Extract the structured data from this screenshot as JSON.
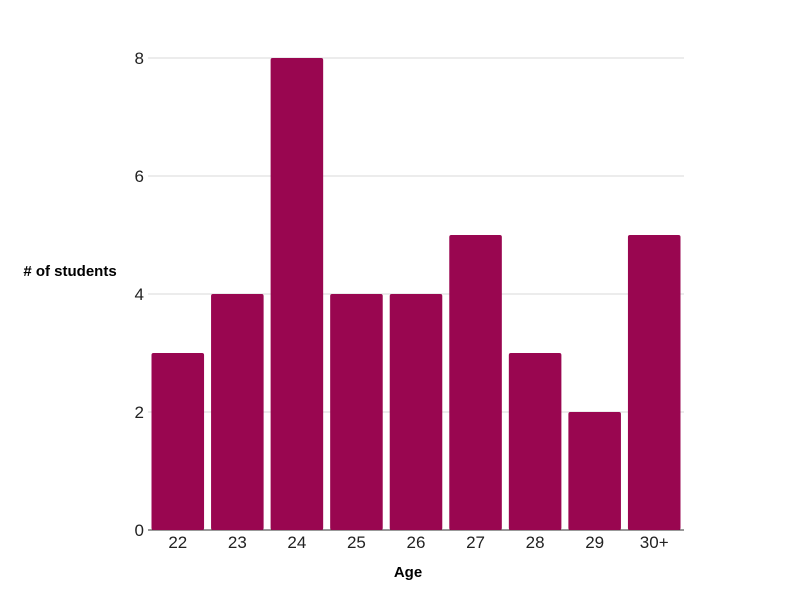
{
  "chart_data": {
    "type": "bar",
    "title": "",
    "xlabel": "Age",
    "ylabel": "# of students",
    "categories": [
      "22",
      "23",
      "24",
      "25",
      "26",
      "27",
      "28",
      "29",
      "30+"
    ],
    "values": [
      3,
      4,
      8,
      4,
      4,
      5,
      3,
      2,
      5
    ],
    "ylim": [
      0,
      8
    ],
    "yticks": [
      0,
      2,
      4,
      6,
      8
    ],
    "grid": true,
    "legend": "none",
    "bar_color": "#990650",
    "grid_color": "#d9d9d9"
  }
}
